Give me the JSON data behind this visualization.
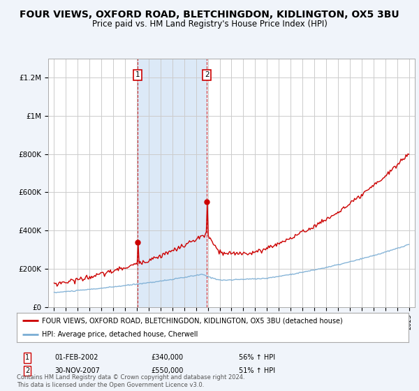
{
  "title": "FOUR VIEWS, OXFORD ROAD, BLETCHINGDON, KIDLINGTON, OX5 3BU",
  "subtitle": "Price paid vs. HM Land Registry's House Price Index (HPI)",
  "title_fontsize": 10,
  "subtitle_fontsize": 8.5,
  "bg_color": "#f0f4fa",
  "plot_bg_color": "#ffffff",
  "grid_color": "#cccccc",
  "ylim": [
    0,
    1300000
  ],
  "yticks": [
    0,
    200000,
    400000,
    600000,
    800000,
    1000000,
    1200000
  ],
  "ytick_labels": [
    "£0",
    "£200K",
    "£400K",
    "£600K",
    "£800K",
    "£1M",
    "£1.2M"
  ],
  "legend_entry1": "FOUR VIEWS, OXFORD ROAD, BLETCHINGDON, KIDLINGTON, OX5 3BU (detached house)",
  "legend_entry2": "HPI: Average price, detached house, Cherwell",
  "annotation1_label": "1",
  "annotation1_date": "01-FEB-2002",
  "annotation1_price": "£340,000",
  "annotation1_hpi": "56% ↑ HPI",
  "annotation2_label": "2",
  "annotation2_date": "30-NOV-2007",
  "annotation2_price": "£550,000",
  "annotation2_hpi": "51% ↑ HPI",
  "footnote": "Contains HM Land Registry data © Crown copyright and database right 2024.\nThis data is licensed under the Open Government Licence v3.0.",
  "red_color": "#cc0000",
  "blue_color": "#7aadd4",
  "highlight_color": "#dce9f7",
  "vline_color": "#cc0000",
  "annotation_box_color": "#cc0000",
  "sale1_t": 2002.08,
  "sale2_t": 2007.92,
  "sale1_price": 340000,
  "sale2_price": 550000,
  "xmin": 1994.5,
  "xmax": 2025.5
}
